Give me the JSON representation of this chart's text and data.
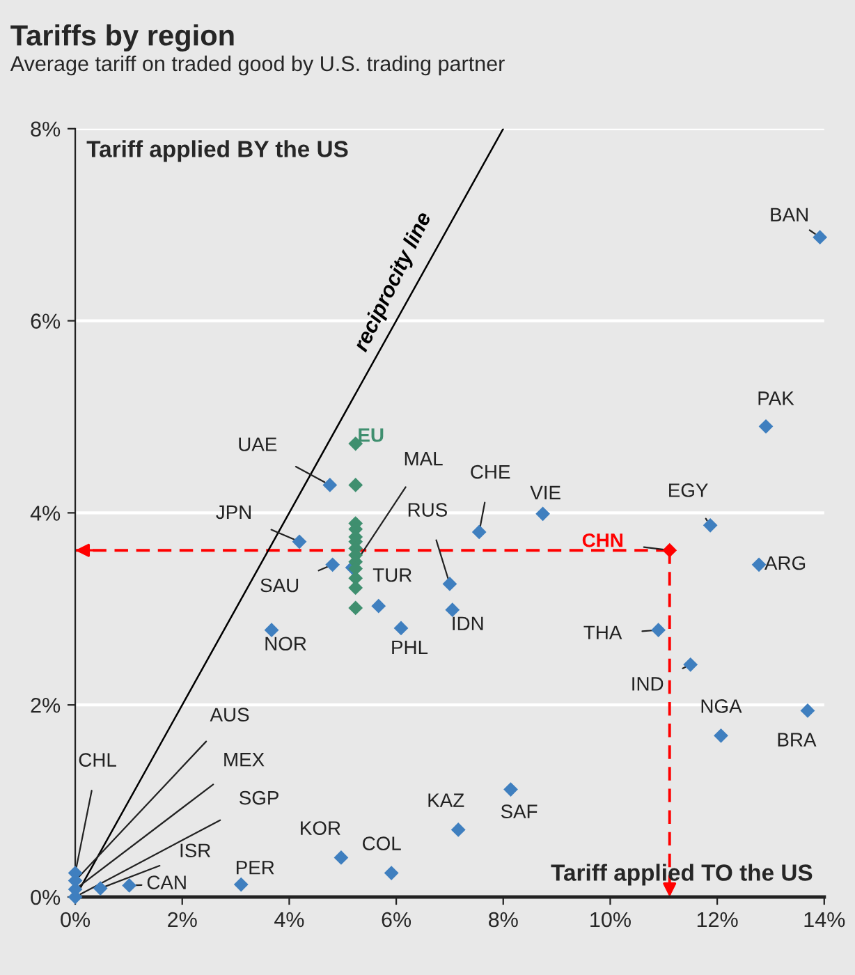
{
  "chart_data": {
    "type": "scatter",
    "title": "Tariffs by region",
    "subtitle": "Average tariff on traded good by U.S. trading partner",
    "xlabel": "Tariff applied TO the US",
    "ylabel": "Tariff applied BY the US",
    "xlim": [
      0,
      14
    ],
    "ylim": [
      0,
      8
    ],
    "xticks": [
      {
        "value": 0,
        "label": "0%"
      },
      {
        "value": 2,
        "label": "2%"
      },
      {
        "value": 4,
        "label": "4%"
      },
      {
        "value": 6,
        "label": "6%"
      },
      {
        "value": 8,
        "label": "8%"
      },
      {
        "value": 10,
        "label": "10%"
      },
      {
        "value": 12,
        "label": "12%"
      },
      {
        "value": 14,
        "label": "14%"
      }
    ],
    "yticks": [
      {
        "value": 0,
        "label": "0%"
      },
      {
        "value": 2,
        "label": "2%"
      },
      {
        "value": 4,
        "label": "4%"
      },
      {
        "value": 6,
        "label": "6%"
      },
      {
        "value": 8,
        "label": "8%"
      }
    ],
    "grid": "y",
    "legend": false,
    "marker": "diamond",
    "series": [
      {
        "color": "#3f7fbf",
        "x": [
          13.92,
          12.91,
          11.87,
          12.78,
          10.9,
          11.5,
          12.07,
          13.69,
          8.74,
          7.55,
          7.0,
          7.05,
          6.09,
          5.67,
          5.18,
          4.81,
          4.19,
          4.76,
          3.67,
          7.16,
          8.14,
          4.97,
          5.91,
          3.1,
          1.01,
          0.47,
          0.0,
          0.0,
          0.0,
          0.0
        ],
        "values": [
          6.87,
          4.9,
          3.87,
          3.46,
          2.78,
          2.42,
          1.68,
          1.94,
          3.99,
          3.8,
          3.26,
          2.99,
          2.8,
          3.03,
          3.43,
          3.46,
          3.7,
          4.29,
          2.78,
          0.7,
          1.12,
          0.41,
          0.25,
          0.13,
          0.12,
          0.09,
          0.0,
          0.08,
          0.17,
          0.25
        ]
      },
      {
        "name": "EU",
        "color": "#3f8f6f",
        "x": [
          5.24,
          5.24,
          5.24,
          5.24,
          5.24,
          5.24,
          5.24,
          5.24,
          5.24,
          5.24,
          5.24,
          5.24,
          5.24
        ],
        "values": [
          4.72,
          4.29,
          3.89,
          3.83,
          3.75,
          3.7,
          3.63,
          3.56,
          3.49,
          3.42,
          3.32,
          3.22,
          3.01
        ]
      },
      {
        "name": "CHN",
        "color": "#ff0000",
        "x": [
          11.11
        ],
        "values": [
          3.61
        ]
      },
      {
        "name": "reciprocity line",
        "type": "line",
        "marker": "none",
        "color": "#000000",
        "x": [
          0,
          8
        ],
        "values": [
          0,
          8
        ]
      }
    ],
    "ref_lines": [
      {
        "axis": "y",
        "value": 3.61,
        "color": "#ff0000",
        "line_style": "dashed"
      },
      {
        "axis": "x",
        "value": 11.11,
        "color": "#ff0000",
        "line_style": "dashed"
      }
    ],
    "annotations": [
      {
        "text": "BAN",
        "x": 13.92,
        "y": 6.87
      },
      {
        "text": "PAK",
        "x": 12.91,
        "y": 4.9
      },
      {
        "text": "EGY",
        "x": 11.87,
        "y": 3.87
      },
      {
        "text": "ARG",
        "x": 12.78,
        "y": 3.46
      },
      {
        "text": "THA",
        "x": 10.9,
        "y": 2.78
      },
      {
        "text": "IND",
        "x": 11.5,
        "y": 2.42
      },
      {
        "text": "NGA",
        "x": 12.07,
        "y": 1.68
      },
      {
        "text": "BRA",
        "x": 13.69,
        "y": 1.94
      },
      {
        "text": "VIE",
        "x": 8.74,
        "y": 3.99
      },
      {
        "text": "CHE",
        "x": 7.55,
        "y": 3.8
      },
      {
        "text": "RUS",
        "x": 7.0,
        "y": 3.26
      },
      {
        "text": "IDN",
        "x": 7.05,
        "y": 2.99
      },
      {
        "text": "PHL",
        "x": 6.09,
        "y": 2.8
      },
      {
        "text": "TUR",
        "x": 5.67,
        "y": 3.03
      },
      {
        "text": "MAL",
        "x": 5.18,
        "y": 3.43
      },
      {
        "text": "SAU",
        "x": 4.81,
        "y": 3.46
      },
      {
        "text": "JPN",
        "x": 4.19,
        "y": 3.7
      },
      {
        "text": "UAE",
        "x": 4.76,
        "y": 4.29
      },
      {
        "text": "NOR",
        "x": 3.67,
        "y": 2.78
      },
      {
        "text": "KAZ",
        "x": 7.16,
        "y": 0.7
      },
      {
        "text": "SAF",
        "x": 8.14,
        "y": 1.12
      },
      {
        "text": "KOR",
        "x": 4.97,
        "y": 0.41
      },
      {
        "text": "COL",
        "x": 5.91,
        "y": 0.25
      },
      {
        "text": "PER",
        "x": 3.1,
        "y": 0.13
      },
      {
        "text": "CAN",
        "x": 1.01,
        "y": 0.12
      },
      {
        "text": "ISR",
        "x": 0.47,
        "y": 0.09
      },
      {
        "text": "SGP",
        "x": 0.0,
        "y": 0.0
      },
      {
        "text": "MEX",
        "x": 0.0,
        "y": 0.08
      },
      {
        "text": "AUS",
        "x": 0.0,
        "y": 0.17
      },
      {
        "text": "CHL",
        "x": 0.0,
        "y": 0.25
      }
    ]
  }
}
